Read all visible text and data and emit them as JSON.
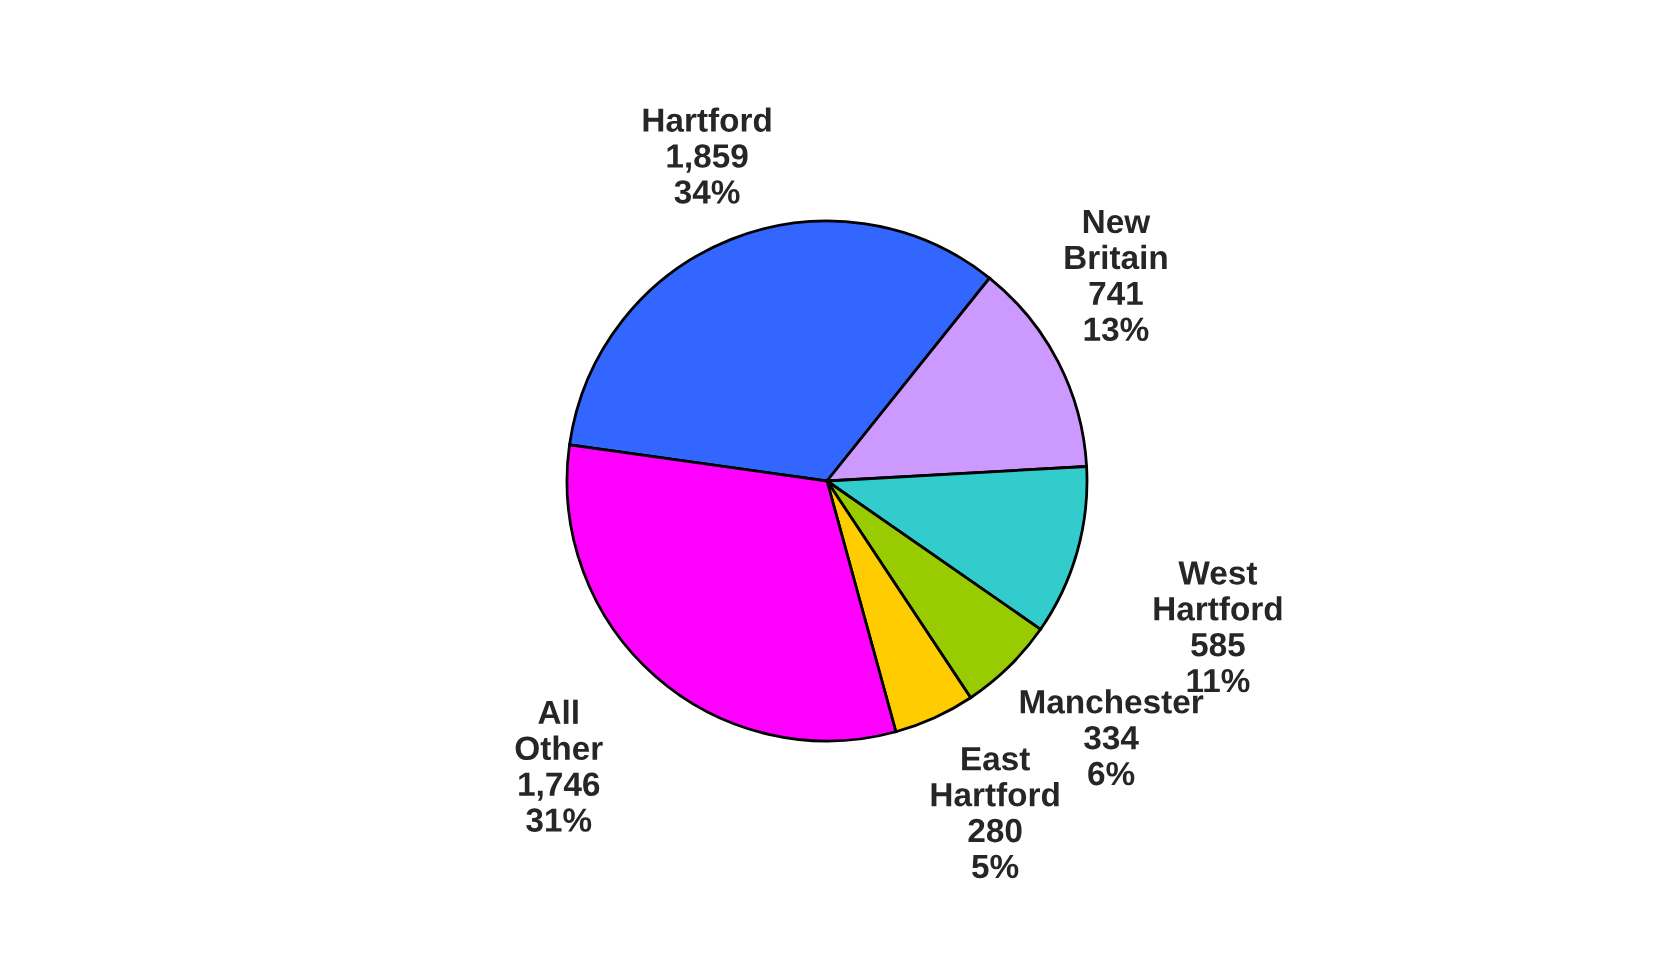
{
  "chart_data": {
    "type": "pie",
    "categories": [
      "Hartford",
      "New Britain",
      "West Hartford",
      "Manchester",
      "East Hartford",
      "All Other"
    ],
    "values": [
      1859,
      741,
      585,
      334,
      280,
      1746
    ],
    "colors": [
      "#3366ff",
      "#cc99ff",
      "#33cccc",
      "#99cc00",
      "#ffcc00",
      "#ff00ff"
    ],
    "value_labels": [
      "1,859\n34%",
      "741\n13%",
      "585\n11%",
      "334\n6%",
      "280\n5%",
      "1,746\n31%"
    ]
  }
}
